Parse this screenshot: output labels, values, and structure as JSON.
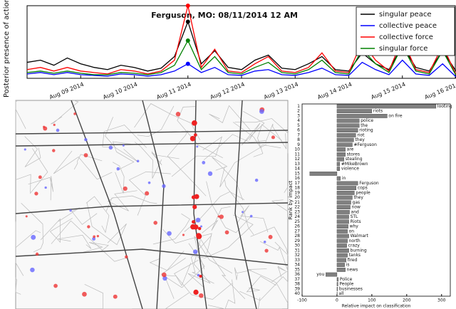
{
  "chart_data": [
    {
      "type": "line",
      "title": "Ferguson, MO: 08/11/2014 12 AM",
      "y_label": "Posterior presence of action",
      "categories": [
        null,
        null,
        null,
        null,
        "Aug 09 2014",
        null,
        null,
        null,
        "Aug 10 2014",
        null,
        null,
        null,
        "Aug 11 2014",
        null,
        null,
        null,
        "Aug 12 2014",
        null,
        null,
        null,
        "Aug 13 2014",
        null,
        null,
        null,
        "Aug 14 2014",
        null,
        null,
        null,
        "Aug 15 2014",
        null,
        null,
        null,
        "Aug 16 2014"
      ],
      "ylim": [
        0,
        1
      ],
      "legend": "upper right",
      "marker_index": 12,
      "series": [
        {
          "name": "singular peace",
          "color": "#000000",
          "values": [
            0.22,
            0.25,
            0.18,
            0.28,
            0.2,
            0.15,
            0.12,
            0.18,
            0.15,
            0.1,
            0.14,
            0.3,
            0.78,
            0.2,
            0.38,
            0.15,
            0.12,
            0.25,
            0.32,
            0.14,
            0.12,
            0.2,
            0.3,
            0.12,
            0.1,
            0.35,
            0.2,
            0.12,
            0.45,
            0.15,
            0.1,
            0.38,
            0.1
          ]
        },
        {
          "name": "collective peace",
          "color": "#0000ff",
          "values": [
            0.06,
            0.08,
            0.05,
            0.08,
            0.05,
            0.04,
            0.03,
            0.06,
            0.05,
            0.03,
            0.05,
            0.1,
            0.2,
            0.08,
            0.15,
            0.05,
            0.04,
            0.1,
            0.12,
            0.05,
            0.04,
            0.08,
            0.14,
            0.05,
            0.04,
            0.22,
            0.12,
            0.05,
            0.25,
            0.06,
            0.04,
            0.2,
            0.02
          ]
        },
        {
          "name": "collective force",
          "color": "#ff0000",
          "values": [
            0.12,
            0.15,
            0.1,
            0.15,
            0.1,
            0.08,
            0.06,
            0.12,
            0.1,
            0.06,
            0.1,
            0.25,
            1.0,
            0.15,
            0.4,
            0.1,
            0.08,
            0.2,
            0.3,
            0.1,
            0.08,
            0.15,
            0.35,
            0.1,
            0.08,
            0.5,
            0.25,
            0.1,
            0.55,
            0.12,
            0.08,
            0.45,
            0.05
          ]
        },
        {
          "name": "singular force",
          "color": "#008000",
          "values": [
            0.08,
            0.1,
            0.07,
            0.1,
            0.07,
            0.05,
            0.05,
            0.08,
            0.07,
            0.05,
            0.08,
            0.18,
            0.52,
            0.12,
            0.3,
            0.08,
            0.06,
            0.15,
            0.22,
            0.08,
            0.06,
            0.12,
            0.25,
            0.08,
            0.06,
            0.4,
            0.2,
            0.08,
            0.45,
            0.1,
            0.06,
            0.38,
            0.04
          ]
        }
      ]
    },
    {
      "type": "hbar",
      "x_label": "Relative impact on classification",
      "y_label": "Rank by impact",
      "color": "#808080",
      "xlim": [
        -100,
        325
      ],
      "xticks": [
        -100,
        0,
        100,
        200,
        300
      ],
      "categories": [
        "1",
        "2",
        "3",
        "4",
        "5",
        "6",
        "7",
        "8",
        "9",
        "10",
        "11",
        "12",
        "13",
        "14",
        "15",
        "16",
        "17",
        "18",
        "19",
        "20",
        "21",
        "22",
        "23",
        "24",
        "25",
        "26",
        "27",
        "28",
        "29",
        "30",
        "31",
        "32",
        "33",
        "34",
        "35",
        "36",
        "37",
        "38",
        "39",
        "40"
      ],
      "words": [
        "looting",
        "riots",
        "on fire",
        "police",
        "the",
        "rioting",
        "riot",
        "they",
        "#Ferguson",
        "are",
        "stores",
        "stealing",
        "#MikeBrown",
        "violence",
        null,
        "in",
        "Ferguson",
        "cops",
        "people",
        "they",
        "gas",
        "now",
        "and",
        "STL",
        "Riots",
        "why",
        "on",
        "Walmart",
        "north",
        "crazy",
        "burning",
        "tanks",
        "fired",
        "is",
        "news",
        "you",
        "Police",
        "People",
        "businesses",
        "all"
      ],
      "values": [
        284,
        100,
        144,
        64,
        64,
        60,
        54,
        48,
        44,
        24,
        24,
        20,
        8,
        8,
        -78,
        10,
        60,
        55,
        50,
        44,
        40,
        38,
        36,
        34,
        34,
        32,
        30,
        34,
        30,
        28,
        34,
        30,
        26,
        22,
        24,
        -32,
        4,
        3,
        2,
        1
      ]
    }
  ]
}
